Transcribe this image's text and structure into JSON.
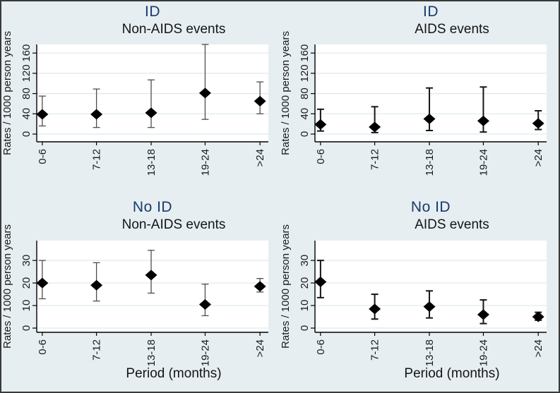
{
  "figure": {
    "background": "#e6eef1",
    "plot_background": "#ffffff",
    "border_color": "#3a3a3a",
    "title_color": "#1b3a6b",
    "text_color": "#1a1a1a",
    "grid_color": "#dde9ed",
    "axis_color": "#000000"
  },
  "chart_data": [
    {
      "type": "scatter",
      "panel": "top-left",
      "group_title": "ID",
      "title": "Non-AIDS events",
      "ylabel": "Rates / 1000 person years",
      "xlabel": "",
      "categories": [
        "0-6",
        "7-12",
        "13-18",
        "19-24",
        ">24"
      ],
      "values": [
        39,
        39,
        42,
        81,
        65
      ],
      "ci_low": [
        16,
        13,
        13,
        29,
        40
      ],
      "ci_high": [
        75,
        89,
        107,
        177,
        103
      ],
      "yticks": [
        0,
        40,
        80,
        120,
        160
      ],
      "ylim": [
        0,
        177
      ],
      "grid": true,
      "legend": "none",
      "marker": "diamond",
      "marker_color": "#000000",
      "whisker_color": "#4f4f4f",
      "whisker_width": 1.3
    },
    {
      "type": "scatter",
      "panel": "top-right",
      "group_title": "ID",
      "title": "AIDS events",
      "ylabel": "Rates / 1000 person years",
      "xlabel": "",
      "categories": [
        "0-6",
        "7-12",
        "13-18",
        "19-24",
        ">24"
      ],
      "values": [
        19,
        14,
        30,
        26,
        21
      ],
      "ci_low": [
        6,
        3,
        7,
        4,
        9
      ],
      "ci_high": [
        49,
        54,
        91,
        93,
        46
      ],
      "yticks": [
        0,
        40,
        80,
        120,
        160
      ],
      "ylim": [
        0,
        177
      ],
      "grid": true,
      "legend": "none",
      "marker": "diamond",
      "marker_color": "#000000",
      "whisker_color": "#161616",
      "whisker_width": 2
    },
    {
      "type": "scatter",
      "panel": "bottom-left",
      "group_title": "No ID",
      "title": "Non-AIDS events",
      "ylabel": "Rates / 1000 person years",
      "xlabel": "Period (months)",
      "categories": [
        "0-6",
        "7-12",
        "13-18",
        "19-24",
        ">24"
      ],
      "values": [
        20,
        19,
        23.5,
        10.5,
        18.5
      ],
      "ci_low": [
        13,
        12,
        15.5,
        5.5,
        16
      ],
      "ci_high": [
        30,
        29,
        34.5,
        19.5,
        22
      ],
      "yticks": [
        0,
        10,
        20,
        30
      ],
      "ylim": [
        0,
        38.8
      ],
      "grid": true,
      "legend": "none",
      "marker": "diamond",
      "marker_color": "#000000",
      "whisker_color": "#4f4f4f",
      "whisker_width": 1.3
    },
    {
      "type": "scatter",
      "panel": "bottom-right",
      "group_title": "No ID",
      "title": "AIDS events",
      "ylabel": "Rates / 1000 person years",
      "xlabel": "Period (months)",
      "categories": [
        "0-6",
        "7-12",
        "13-18",
        "19-24",
        ">24"
      ],
      "values": [
        20.5,
        8.5,
        9.5,
        6,
        5
      ],
      "ci_low": [
        13.5,
        4,
        4.5,
        2,
        3.5
      ],
      "ci_high": [
        30,
        15,
        16.5,
        12.5,
        7
      ],
      "yticks": [
        0,
        10,
        20,
        30
      ],
      "ylim": [
        0,
        38.8
      ],
      "grid": true,
      "legend": "none",
      "marker": "diamond",
      "marker_color": "#000000",
      "whisker_color": "#161616",
      "whisker_width": 2
    }
  ]
}
